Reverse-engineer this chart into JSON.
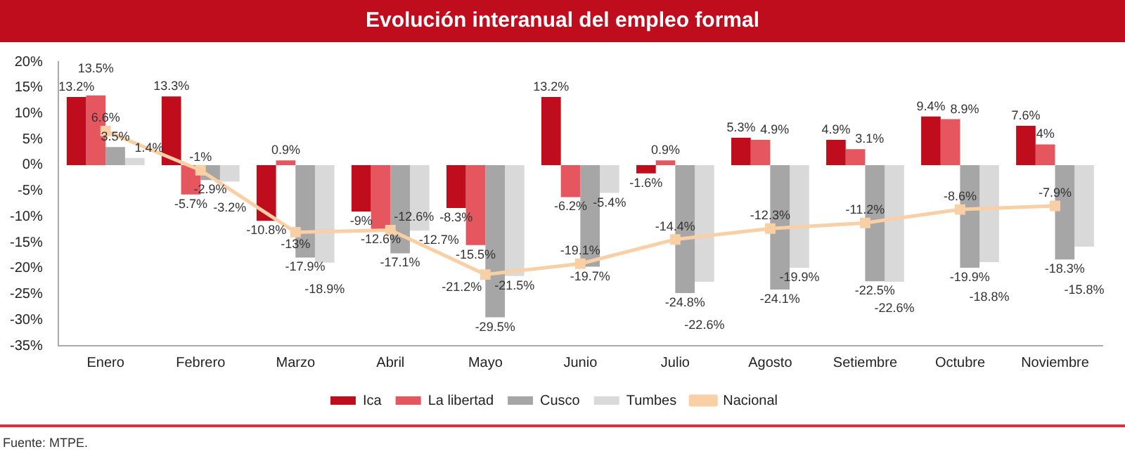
{
  "chart_data": {
    "type": "bar",
    "title": "Evolución interanual del empleo formal",
    "categories": [
      "Enero",
      "Febrero",
      "Marzo",
      "Abril",
      "Mayo",
      "Junio",
      "Julio",
      "Agosto",
      "Setiembre",
      "Octubre",
      "Noviembre"
    ],
    "series": [
      {
        "name": "Ica",
        "color": "#c00d1e",
        "values": [
          13.2,
          13.3,
          -10.8,
          -9,
          -8.3,
          13.2,
          -1.6,
          5.3,
          4.9,
          9.4,
          7.6
        ],
        "value_labels": [
          "13.2%",
          "13.3%",
          "-10.8%",
          "-9%",
          "-8.3%",
          "13.2%",
          "-1.6%",
          "5.3%",
          "4.9%",
          "9.4%",
          "7.6%"
        ]
      },
      {
        "name": "La libertad",
        "color": "#e5565f",
        "values": [
          13.5,
          -5.7,
          0.9,
          -12.6,
          -15.5,
          -6.2,
          0.9,
          4.9,
          3.1,
          8.9,
          4
        ],
        "value_labels": [
          "13.5%",
          "-5.7%",
          "0.9%",
          "-12.6%",
          "-15.5%",
          "-6.2%",
          "0.9%",
          "4.9%",
          "3.1%",
          "8.9%",
          "4%"
        ]
      },
      {
        "name": "Cusco",
        "color": "#a6a6a6",
        "values": [
          3.5,
          -2.9,
          -17.9,
          -17.1,
          -29.5,
          -19.7,
          -24.8,
          -24.1,
          -22.5,
          -19.9,
          -18.3
        ],
        "value_labels": [
          "3.5%",
          "-2.9%",
          "-17.9%",
          "-17.1%",
          "-29.5%",
          "-19.7%",
          "-24.8%",
          "-24.1%",
          "-22.5%",
          "-19.9%",
          "-18.3%"
        ]
      },
      {
        "name": "Tumbes",
        "color": "#d9d9d9",
        "values": [
          1.4,
          -3.2,
          -18.9,
          -12.7,
          -21.5,
          -5.4,
          -22.6,
          -19.9,
          -22.6,
          -18.8,
          -15.8
        ],
        "value_labels": [
          "1.4%",
          "-3.2%",
          "-18.9%",
          "-12.7%",
          "-21.5%",
          "-5.4%",
          "-22.6%",
          "-19.9%",
          "-22.6%",
          "-18.8%",
          "-15.8%"
        ]
      },
      {
        "name": "Nacional",
        "type": "line",
        "marker": "square",
        "color": "#f9cfa5",
        "values": [
          6.6,
          -1,
          -13,
          -12.6,
          -21.2,
          -19.1,
          -14.4,
          -12.3,
          -11.2,
          -8.6,
          -7.9
        ],
        "value_labels": [
          "6.6%",
          "-1%",
          "-13%",
          "-12.6%",
          "-21.2%",
          "-19.1%",
          "-14.4%",
          "-12.3%",
          "-11.2%",
          "-8.6%",
          "-7.9%"
        ]
      }
    ],
    "ylim": [
      -35,
      20
    ],
    "yticks": [
      {
        "value": -35,
        "label": "-35%"
      },
      {
        "value": -30,
        "label": "-30%"
      },
      {
        "value": -25,
        "label": "-25%"
      },
      {
        "value": -20,
        "label": "-20%"
      },
      {
        "value": -15,
        "label": "-15%"
      },
      {
        "value": -10,
        "label": "-10%"
      },
      {
        "value": -5,
        "label": "-5%"
      },
      {
        "value": 0,
        "label": "0%"
      },
      {
        "value": 5,
        "label": "5%"
      },
      {
        "value": 10,
        "label": "10%"
      },
      {
        "value": 15,
        "label": "15%"
      },
      {
        "value": 20,
        "label": "20%"
      }
    ],
    "grid": false,
    "legend": "bottom",
    "annotations": [
      "Fuente: MTPE."
    ]
  }
}
